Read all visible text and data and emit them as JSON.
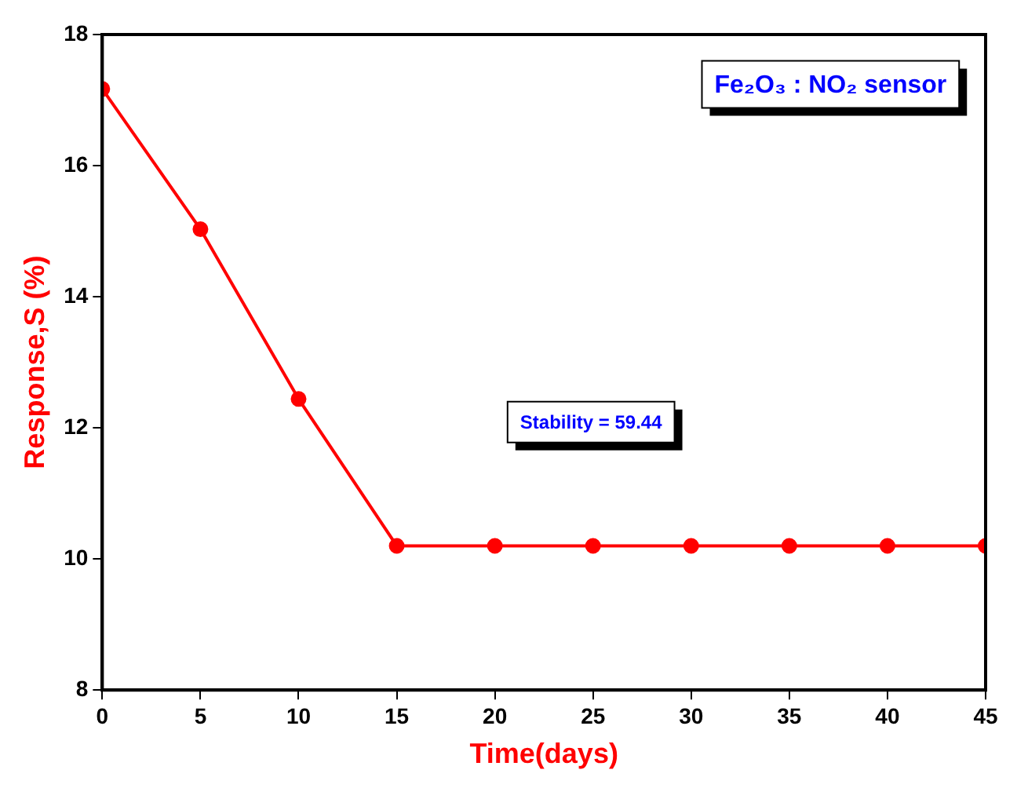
{
  "chart_data": {
    "type": "line",
    "xlabel": "Time(days)",
    "ylabel": "Response,S (%)",
    "x": [
      0,
      5,
      10,
      15,
      20,
      25,
      30,
      35,
      40,
      45
    ],
    "series": [
      {
        "color": "#ff0000",
        "values": [
          17.17,
          15.03,
          12.44,
          10.2,
          10.2,
          10.2,
          10.2,
          10.2,
          10.2,
          10.2
        ]
      }
    ],
    "xlim": [
      0,
      45
    ],
    "xticks": [
      0,
      5,
      10,
      15,
      20,
      25,
      30,
      35,
      40,
      45
    ],
    "ylim": [
      8,
      18
    ],
    "yticks": [
      8,
      10,
      12,
      14,
      16,
      18
    ],
    "grid": false,
    "legend": false,
    "marker": "circle",
    "line_style": "solid",
    "annotations": [
      "Fe₂O₃ : NO₂ sensor",
      "Stability = 59.44"
    ]
  }
}
